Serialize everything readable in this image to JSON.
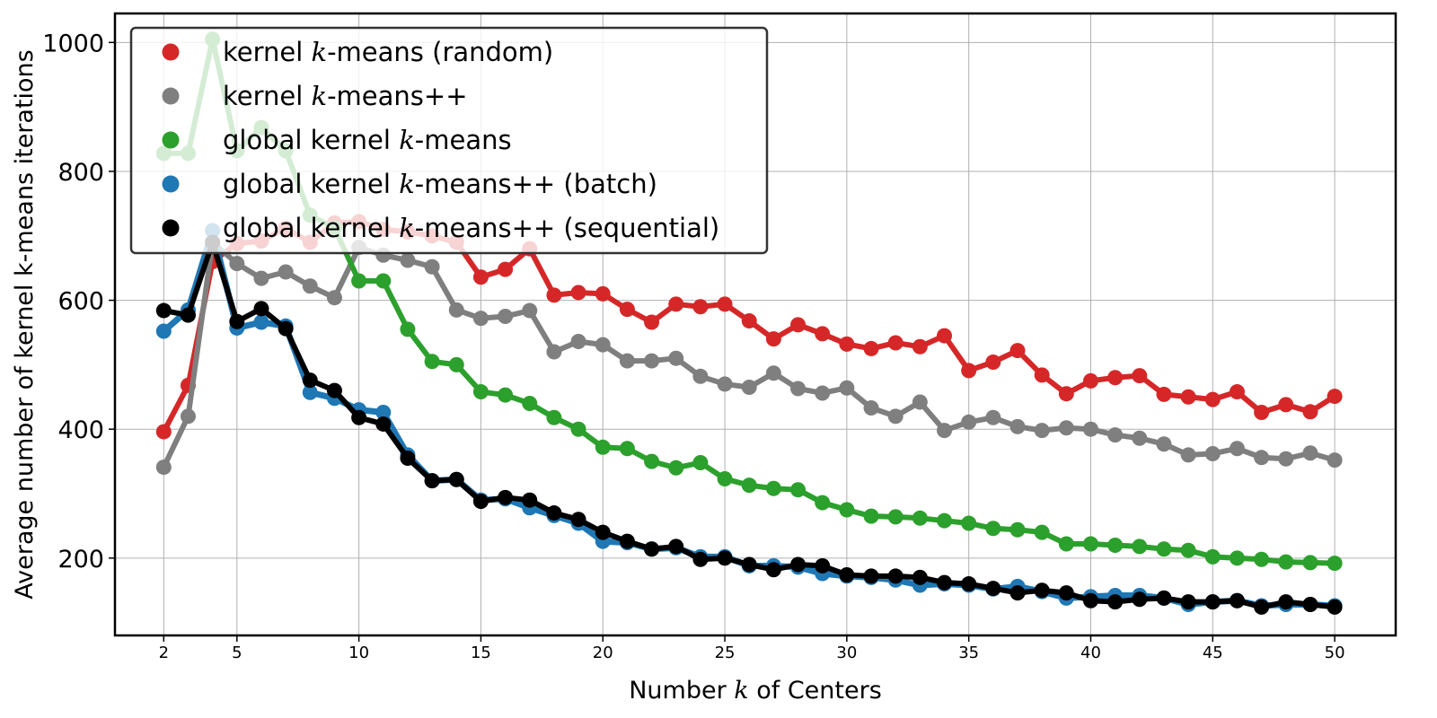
{
  "chart_data": {
    "type": "line",
    "xlabel_pre": "Number ",
    "xlabel_var": "k",
    "xlabel_post": " of Centers",
    "ylabel": "Average number of kernel k-means iterations",
    "xlim": [
      0,
      52.5
    ],
    "ylim": [
      80,
      1045
    ],
    "xticks": [
      2,
      5,
      10,
      15,
      20,
      25,
      30,
      35,
      40,
      45,
      50
    ],
    "yticks": [
      200,
      400,
      600,
      800,
      1000
    ],
    "grid": true,
    "legend_position": "top-left",
    "x": [
      2,
      3,
      4,
      5,
      6,
      7,
      8,
      9,
      10,
      11,
      12,
      13,
      14,
      15,
      16,
      17,
      18,
      19,
      20,
      21,
      22,
      23,
      24,
      25,
      26,
      27,
      28,
      29,
      30,
      31,
      32,
      33,
      34,
      35,
      36,
      37,
      38,
      39,
      40,
      41,
      42,
      43,
      44,
      45,
      46,
      47,
      48,
      49,
      50
    ],
    "series": [
      {
        "name_pre": "kernel ",
        "name_var": "k",
        "name_post": "-means (random)",
        "color": "#d62728",
        "width": 6,
        "values": [
          396,
          468,
          660,
          688,
          692,
          712,
          690,
          720,
          722,
          710,
          706,
          700,
          690,
          636,
          648,
          680,
          608,
          612,
          610,
          586,
          566,
          594,
          590,
          594,
          568,
          540,
          562,
          548,
          532,
          525,
          534,
          528,
          545,
          491,
          504,
          522,
          484,
          455,
          475,
          480,
          483,
          454,
          450,
          446,
          458,
          426,
          438,
          427,
          451
        ]
      },
      {
        "name_pre": "kernel ",
        "name_var": "k",
        "name_post": "-means++",
        "color": "#7f7f7f",
        "width": 6,
        "values": [
          341,
          420,
          690,
          657,
          634,
          644,
          622,
          604,
          682,
          670,
          662,
          652,
          585,
          572,
          575,
          584,
          520,
          536,
          531,
          506,
          506,
          510,
          482,
          470,
          465,
          487,
          463,
          456,
          464,
          433,
          420,
          442,
          398,
          411,
          418,
          404,
          398,
          402,
          400,
          391,
          386,
          377,
          360,
          362,
          370,
          356,
          354,
          363,
          352
        ]
      },
      {
        "name_pre": "global kernel ",
        "name_var": "k",
        "name_post": "-means",
        "color": "#2ca02c",
        "width": 6,
        "values": [
          828,
          828,
          1005,
          832,
          868,
          832,
          732,
          712,
          630,
          630,
          555,
          505,
          500,
          458,
          453,
          440,
          418,
          400,
          372,
          370,
          350,
          340,
          348,
          323,
          313,
          308,
          306,
          286,
          275,
          265,
          264,
          262,
          258,
          254,
          246,
          244,
          240,
          222,
          222,
          220,
          218,
          214,
          212,
          202,
          200,
          198,
          194,
          193,
          192
        ]
      },
      {
        "name_pre": "global kernel ",
        "name_var": "k",
        "name_post": "-means++ (batch)",
        "color": "#1f77b4",
        "width": 7,
        "values": [
          552,
          585,
          708,
          557,
          566,
          560,
          457,
          448,
          430,
          426,
          360,
          320,
          322,
          290,
          292,
          278,
          266,
          254,
          226,
          224,
          214,
          216,
          202,
          202,
          188,
          188,
          186,
          176,
          172,
          170,
          166,
          158,
          160,
          158,
          152,
          156,
          148,
          138,
          140,
          142,
          142,
          138,
          128,
          132,
          134,
          126,
          128,
          128,
          126
        ]
      },
      {
        "name_pre": "global kernel ",
        "name_var": "k",
        "name_post": "-means++ (sequential)",
        "color": "#000000",
        "width": 6,
        "values": [
          584,
          577,
          690,
          567,
          587,
          556,
          476,
          460,
          418,
          408,
          355,
          320,
          322,
          288,
          294,
          290,
          270,
          260,
          240,
          226,
          214,
          218,
          198,
          200,
          190,
          182,
          190,
          188,
          174,
          172,
          172,
          170,
          162,
          160,
          153,
          146,
          150,
          146,
          134,
          132,
          136,
          138,
          132,
          132,
          134,
          124,
          132,
          128,
          124
        ]
      }
    ]
  }
}
